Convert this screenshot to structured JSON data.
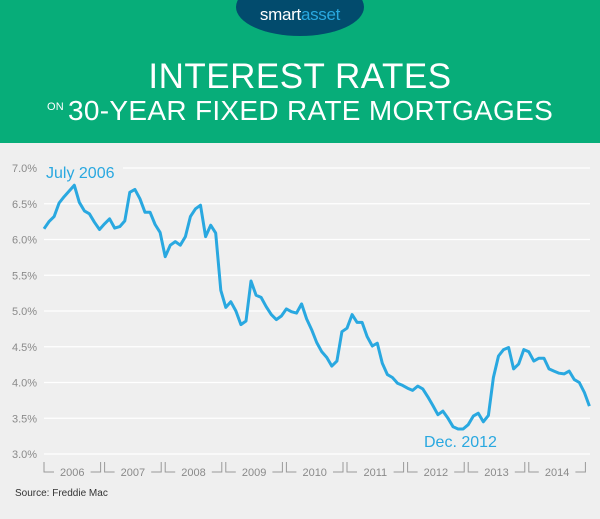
{
  "header": {
    "logo": {
      "part1": "smart",
      "part2": "asset"
    },
    "title": "INTEREST RATES",
    "subtitle_prefix": "ON",
    "subtitle": "30-YEAR FIXED RATE MORTGAGES"
  },
  "colors": {
    "header": "#07ad79",
    "logo_bg": "#024b6d",
    "line": "#29a8e0",
    "background": "#efefef"
  },
  "source": "Source: Freddie Mac",
  "chart_data": {
    "type": "line",
    "title": "INTEREST RATES ON 30-YEAR FIXED RATE MORTGAGES",
    "xlabel": "",
    "ylabel": "",
    "ylim": [
      3.0,
      7.0
    ],
    "yticks": [
      "7.0%",
      "6.5%",
      "6.0%",
      "5.5%",
      "5.0%",
      "4.5%",
      "4.0%",
      "3.5%",
      "3.0%"
    ],
    "ytick_values": [
      7.0,
      6.5,
      6.0,
      5.5,
      5.0,
      4.5,
      4.0,
      3.5,
      3.0
    ],
    "xticks": [
      "2006",
      "2007",
      "2008",
      "2009",
      "2010",
      "2011",
      "2012",
      "2013",
      "2014"
    ],
    "x_start": "2006-01",
    "x_step": "month",
    "grid": "horizontal",
    "annotations": [
      {
        "text": "July 2006",
        "x": "2006-07",
        "y": 6.76
      },
      {
        "text": "Dec. 2012",
        "x": "2012-12",
        "y": 3.35
      }
    ],
    "values": [
      6.15,
      6.25,
      6.32,
      6.51,
      6.6,
      6.68,
      6.76,
      6.52,
      6.4,
      6.36,
      6.24,
      6.14,
      6.22,
      6.29,
      6.16,
      6.18,
      6.26,
      6.66,
      6.7,
      6.57,
      6.38,
      6.38,
      6.21,
      6.1,
      5.76,
      5.92,
      5.97,
      5.92,
      6.04,
      6.32,
      6.43,
      6.48,
      6.04,
      6.2,
      6.09,
      5.29,
      5.05,
      5.13,
      5.0,
      4.81,
      4.86,
      5.42,
      5.22,
      5.19,
      5.06,
      4.95,
      4.88,
      4.93,
      5.03,
      4.99,
      4.97,
      5.1,
      4.89,
      4.74,
      4.56,
      4.43,
      4.35,
      4.23,
      4.3,
      4.71,
      4.76,
      4.95,
      4.84,
      4.84,
      4.64,
      4.51,
      4.55,
      4.27,
      4.11,
      4.07,
      3.99,
      3.96,
      3.92,
      3.89,
      3.95,
      3.91,
      3.8,
      3.68,
      3.55,
      3.6,
      3.5,
      3.38,
      3.35,
      3.35,
      3.41,
      3.53,
      3.57,
      3.45,
      3.54,
      4.07,
      4.37,
      4.46,
      4.49,
      4.19,
      4.26,
      4.46,
      4.43,
      4.3,
      4.34,
      4.34,
      4.19,
      4.16,
      4.13,
      4.12,
      4.16,
      4.04,
      4.0,
      3.86,
      3.67
    ]
  }
}
